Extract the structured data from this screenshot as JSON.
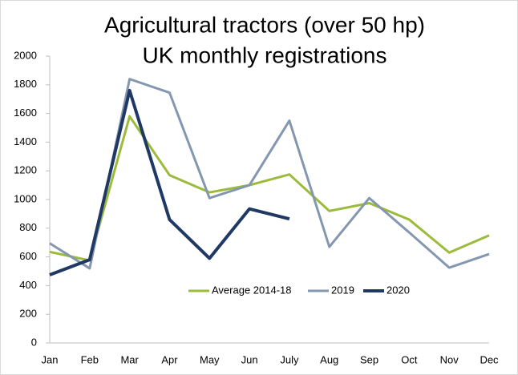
{
  "chart_data": {
    "type": "line",
    "title": [
      "Agricultural tractors (over 50 hp)",
      "UK monthly registrations"
    ],
    "categories": [
      "Jan",
      "Feb",
      "Mar",
      "Apr",
      "May",
      "Jun",
      "July",
      "Aug",
      "Sep",
      "Oct",
      "Nov",
      "Dec"
    ],
    "series": [
      {
        "name": "Average 2014-18",
        "color": "#9bbb3b",
        "values": [
          635,
          575,
          1580,
          1170,
          1050,
          1100,
          1175,
          920,
          975,
          860,
          630,
          750
        ]
      },
      {
        "name": "2019",
        "color": "#8497b0",
        "values": [
          695,
          520,
          1840,
          1745,
          1010,
          1100,
          1550,
          670,
          1010,
          770,
          525,
          620
        ]
      },
      {
        "name": "2020",
        "color": "#1f3864",
        "values": [
          475,
          580,
          1760,
          860,
          590,
          935,
          865,
          null,
          null,
          null,
          null,
          null
        ]
      }
    ],
    "ylim": [
      0,
      2000
    ],
    "yticks": [
      0,
      200,
      400,
      600,
      800,
      1000,
      1200,
      1400,
      1600,
      1800,
      2000
    ],
    "grid": false,
    "legend": "bottom"
  }
}
